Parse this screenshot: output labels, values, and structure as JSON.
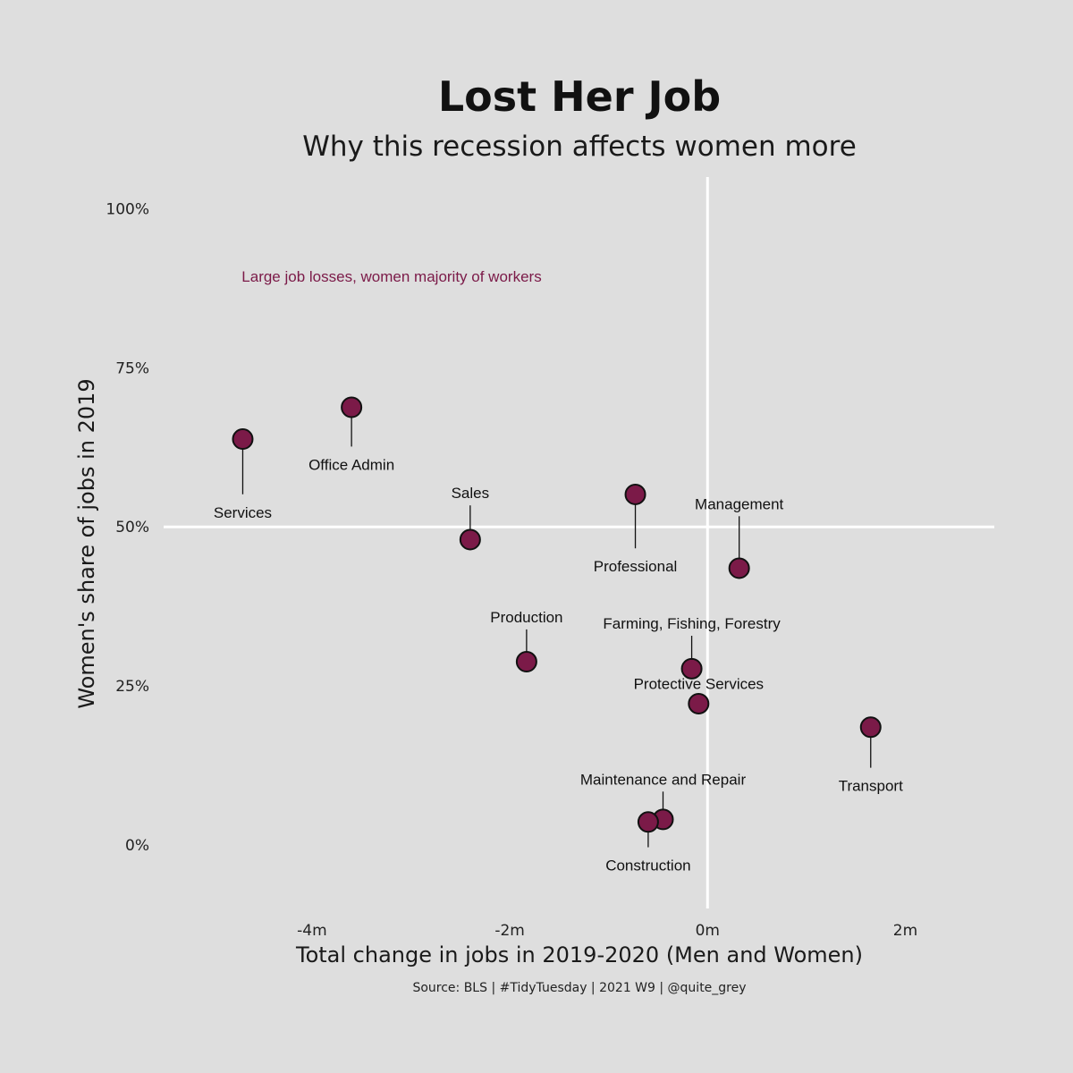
{
  "chart_data": {
    "type": "scatter",
    "title": "Lost Her Job",
    "subtitle": "Why this recession affects women more",
    "xlabel": "Total change in jobs in 2019-2020 (Men and Women)",
    "ylabel": "Women's share of jobs in 2019",
    "caption": "Source: BLS | #TidyTuesday | 2021 W9 | @quite_grey",
    "annotation": "Large job losses, women majority of workers",
    "xlim": [
      -5.5,
      2.9
    ],
    "ylim": [
      -0.1,
      1.05
    ],
    "x_ticks": [
      {
        "value": -4,
        "label": "-4m"
      },
      {
        "value": -2,
        "label": "-2m"
      },
      {
        "value": 0,
        "label": "0m"
      },
      {
        "value": 2,
        "label": "2m"
      }
    ],
    "y_ticks": [
      {
        "value": 0,
        "label": "0%"
      },
      {
        "value": 0.25,
        "label": "25%"
      },
      {
        "value": 0.5,
        "label": "50%"
      },
      {
        "value": 0.75,
        "label": "75%"
      },
      {
        "value": 1.0,
        "label": "100%"
      }
    ],
    "reference_lines": {
      "x": 0,
      "y": 0.5
    },
    "grid": false,
    "legend": "none",
    "points": [
      {
        "label": "Services",
        "x": -4.7,
        "y": 0.638,
        "label_y": 0.54,
        "label_x": -4.7
      },
      {
        "label": "Office Admin",
        "x": -3.6,
        "y": 0.688,
        "label_y": 0.615,
        "label_x": -3.6
      },
      {
        "label": "Sales",
        "x": -2.4,
        "y": 0.48,
        "label_y": 0.545,
        "label_x": -2.4
      },
      {
        "label": "Professional",
        "x": -0.73,
        "y": 0.551,
        "label_y": 0.455,
        "label_x": -0.73
      },
      {
        "label": "Management",
        "x": 0.32,
        "y": 0.435,
        "label_y": 0.528,
        "label_x": 0.32
      },
      {
        "label": "Production",
        "x": -1.83,
        "y": 0.288,
        "label_y": 0.35,
        "label_x": -1.83
      },
      {
        "label": "Farming, Fishing, Forestry",
        "x": -0.16,
        "y": 0.277,
        "label_y": 0.34,
        "label_x": -0.16
      },
      {
        "label": "Protective Services",
        "x": -0.09,
        "y": 0.222,
        "label_y": 0.245,
        "label_x": -0.09
      },
      {
        "label": "Transport",
        "x": 1.65,
        "y": 0.185,
        "label_y": 0.11,
        "label_x": 1.65
      },
      {
        "label": "Maintenance and Repair",
        "x": -0.45,
        "y": 0.04,
        "label_y": 0.095,
        "label_x": -0.45
      },
      {
        "label": "Construction",
        "x": -0.6,
        "y": 0.036,
        "label_y": -0.015,
        "label_x": -0.6
      }
    ],
    "colors": {
      "background": "#dedede",
      "point_fill": "#7b1a48",
      "point_stroke": "#111111",
      "reference_line": "#ffffff",
      "annotation": "#7b1a48"
    }
  }
}
